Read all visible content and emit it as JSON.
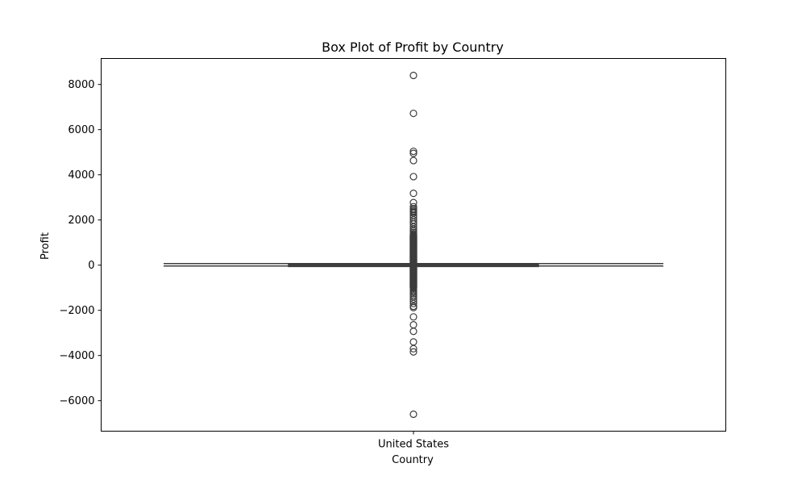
{
  "chart_data": {
    "type": "box",
    "title": "Box Plot of Profit by Country",
    "xlabel": "Country",
    "ylabel": "Profit",
    "categories": [
      "United States"
    ],
    "ylim": [
      -7350,
      9150
    ],
    "yticks": [
      -6000,
      -4000,
      -2000,
      0,
      2000,
      4000,
      6000,
      8000
    ],
    "ytick_labels": [
      "−6000",
      "−4000",
      "−2000",
      "0",
      "2000",
      "4000",
      "6000",
      "8000"
    ],
    "grid": false,
    "legend": "none",
    "boxes": [
      {
        "category": "United States",
        "q1": 1.7,
        "median": 8.7,
        "q3": 29.4,
        "whisker_low": -39.7,
        "whisker_high": 70.8,
        "outliers": [
          8400,
          6720,
          5040,
          4950,
          4630,
          3920,
          3180,
          2770,
          2590,
          2500,
          2460,
          2400,
          2350,
          2300,
          2200,
          2100,
          2000,
          1900,
          1820,
          1700,
          1600,
          1520,
          1450,
          1380,
          1320,
          1260,
          1200,
          1140,
          1080,
          1020,
          960,
          900,
          840,
          780,
          720,
          660,
          600,
          540,
          480,
          420,
          360,
          300,
          240,
          180,
          120,
          -100,
          -160,
          -220,
          -280,
          -340,
          -400,
          -460,
          -520,
          -580,
          -640,
          -700,
          -760,
          -820,
          -880,
          -940,
          -1000,
          -1060,
          -1120,
          -1180,
          -1250,
          -1320,
          -1400,
          -1500,
          -1600,
          -1700,
          -1820,
          -1880,
          -2290,
          -2640,
          -2930,
          -3400,
          -3700,
          -3840,
          -6600
        ]
      }
    ],
    "colors": {
      "box_edge": "#3d3d3d",
      "box_fill": "#3d3d3d",
      "outlier_edge": "#3d3d3d",
      "axes": "#000000",
      "background": "#ffffff"
    }
  }
}
